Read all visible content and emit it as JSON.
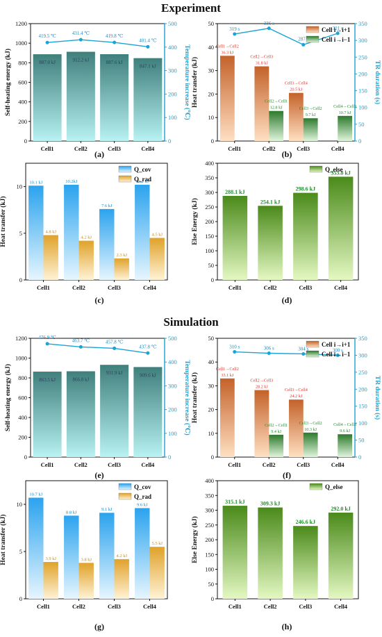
{
  "sections": {
    "experiment_title": "Experiment",
    "simulation_title": "Simulation"
  },
  "colors": {
    "axis": "#111111",
    "right_axis": "#1aa3d6",
    "teal_top": "#3f7f7c",
    "teal_bottom": "#b8f2f2",
    "orange_top": "#c4622a",
    "orange_bottom": "#ffe0c2",
    "green_top": "#2d7a2d",
    "green_bottom": "#e0f5dc",
    "blue_top": "#2ba3ee",
    "blue_bottom": "#e6f6ff",
    "gold_top": "#e0a22a",
    "gold_bottom": "#fff3d6",
    "lime_top": "#4a8a1a",
    "lime_bottom": "#e4f8c2",
    "label_red": "#e0302a",
    "label_green": "#1e8f2a",
    "label_blue": "#1a88c8",
    "label_gold": "#c78a1a"
  },
  "chart_data": [
    {
      "id": "a",
      "type": "bar+line",
      "panel_label": "(a)",
      "categories": [
        "Cell1",
        "Cell2",
        "Cell3",
        "Cell4"
      ],
      "ylabel": "Self-heating energy (kJ)",
      "ylim": [
        0,
        1200
      ],
      "yticks": [
        0,
        200,
        400,
        600,
        800,
        1000,
        1200
      ],
      "y2label": "Temperature increase (℃)",
      "y2lim": [
        0,
        500
      ],
      "y2ticks": [
        0,
        100,
        200,
        300,
        400,
        500
      ],
      "series": [
        {
          "values": [
            887.0,
            912.2,
            887.6,
            847.1
          ],
          "labels": [
            "887.0 kJ",
            "912.2 kJ",
            "887.6 kJ",
            "847.1 kJ"
          ]
        }
      ],
      "line": {
        "values": [
          419.5,
          431.4,
          419.8,
          401.4
        ],
        "labels": [
          "419.5 ℃",
          "431.4 ℃",
          "419.8 ℃",
          "401.4 ℃"
        ]
      }
    },
    {
      "id": "b",
      "type": "bar+line",
      "panel_label": "(b)",
      "categories": [
        "Cell1",
        "Cell2",
        "Cell3",
        "Cell4"
      ],
      "ylabel": "Heat transfer (kJ)",
      "ylim": [
        0,
        50
      ],
      "yticks": [
        0,
        10,
        20,
        30,
        40,
        50
      ],
      "y2label": "TR duration (s)",
      "y2lim": [
        0,
        350
      ],
      "y2ticks": [
        0,
        50,
        100,
        150,
        200,
        250,
        300,
        350
      ],
      "legend": [
        "Cell i→i+1",
        "Cell i→i−1"
      ],
      "series": [
        {
          "name": "Cell i→i+1",
          "values": [
            36.3,
            31.8,
            20.5,
            null
          ],
          "labels": [
            "Cell1→Cell2\n36.3 kJ",
            "Cell2→Cell3\n31.8 kJ",
            "Cell3→Cell4\n20.5 kJ",
            ""
          ]
        },
        {
          "name": "Cell i→i−1",
          "values": [
            null,
            12.8,
            9.7,
            10.7
          ],
          "labels": [
            "",
            "Cell2→Cell1\n12.8 kJ",
            "Cell3→Cell2\n9.7 kJ",
            "Cell4→Cell3\n10.7 kJ"
          ]
        }
      ],
      "line": {
        "values": [
          319,
          336,
          287,
          321
        ],
        "labels": [
          "319 s",
          "336 s",
          "287 s",
          "321 s"
        ]
      }
    },
    {
      "id": "c",
      "type": "bar",
      "panel_label": "(c)",
      "categories": [
        "Cell1",
        "Cell2",
        "Cell3",
        "Cell4"
      ],
      "ylabel": "Heat transfer (kJ)",
      "ylim": [
        0,
        12.5
      ],
      "yticks": [
        0,
        5,
        10
      ],
      "legend": [
        "Q_cov",
        "Q_rad"
      ],
      "series": [
        {
          "name": "Q_cov",
          "values": [
            10.1,
            10.2,
            7.6,
            10.2
          ],
          "labels": [
            "10.1 kJ",
            "10.2kJ",
            "7.6 kJ",
            "10.2 kJ"
          ]
        },
        {
          "name": "Q_rad",
          "values": [
            4.8,
            4.2,
            2.3,
            4.5
          ],
          "labels": [
            "4.8 kJ",
            "4.2 kJ",
            "2.3 kJ",
            "4.5 kJ"
          ]
        }
      ]
    },
    {
      "id": "d",
      "type": "bar",
      "panel_label": "(d)",
      "categories": [
        "Cell1",
        "Cell2",
        "Cell3",
        "Cell4"
      ],
      "ylabel": "Else Energy (kJ)",
      "ylim": [
        0,
        400
      ],
      "yticks": [
        0,
        50,
        100,
        150,
        200,
        250,
        300,
        350,
        400
      ],
      "legend": [
        "Q_else"
      ],
      "series": [
        {
          "name": "Q_else",
          "values": [
            288.1,
            254.1,
            298.6,
            353.8
          ],
          "labels": [
            "288.1 kJ",
            "254.1 kJ",
            "298.6 kJ",
            "353.8 kJ"
          ]
        }
      ]
    },
    {
      "id": "e",
      "type": "bar+line",
      "panel_label": "(e)",
      "categories": [
        "Cell1",
        "Cell2",
        "Cell3",
        "Cell4"
      ],
      "ylabel": "Self-heating energy (kJ)",
      "ylim": [
        0,
        1200
      ],
      "yticks": [
        0,
        200,
        400,
        600,
        800,
        1000,
        1200
      ],
      "y2label": "Temperature increase (℃)",
      "y2lim": [
        0,
        500
      ],
      "y2ticks": [
        0,
        100,
        200,
        300,
        400,
        500
      ],
      "series": [
        {
          "values": [
            863.5,
            866.8,
            931.9,
            909.6
          ],
          "labels": [
            "863.5 kJ",
            "866.8 kJ",
            "931.9 kJ",
            "909.6 kJ"
          ]
        }
      ],
      "line": {
        "values": [
          476.9,
          463.7,
          457.8,
          437.8
        ],
        "labels": [
          "476.9 ℃",
          "463.7 ℃",
          "457.8 ℃",
          "437.8 ℃"
        ]
      }
    },
    {
      "id": "f",
      "type": "bar+line",
      "panel_label": "(f)",
      "categories": [
        "Cell1",
        "Cell2",
        "Cell3",
        "Cell4"
      ],
      "ylabel": "Heat transfer (kJ)",
      "ylim": [
        0,
        50
      ],
      "yticks": [
        0,
        10,
        20,
        30,
        40,
        50
      ],
      "y2label": "TR duration (s)",
      "y2lim": [
        0,
        350
      ],
      "y2ticks": [
        0,
        50,
        100,
        150,
        200,
        250,
        300,
        350
      ],
      "legend": [
        "Cell i→i+1",
        "Cell i→i−1"
      ],
      "series": [
        {
          "name": "Cell i→i+1",
          "values": [
            33.1,
            28.2,
            24.2,
            null
          ],
          "labels": [
            "Cell1→Cell2\n33.1 kJ",
            "Cell2→Cell3\n28.2 kJ",
            "Cell3→Cell4\n24.2 kJ",
            ""
          ]
        },
        {
          "name": "Cell i→i−1",
          "values": [
            null,
            9.4,
            10.3,
            9.6
          ],
          "labels": [
            "",
            "Cell2→Cell1\n9.4 kJ",
            "Cell3→Cell2\n10.3 kJ",
            "Cell4→Cell3\n9.6 kJ"
          ]
        }
      ],
      "line": {
        "values": [
          310,
          306,
          304,
          300
        ],
        "labels": [
          "310 s",
          "306 s",
          "304 s",
          "300 s"
        ]
      }
    },
    {
      "id": "g",
      "type": "bar",
      "panel_label": "(g)",
      "categories": [
        "Cell1",
        "Cell2",
        "Cell3",
        "Cell4"
      ],
      "ylabel": "Heat transfer (kJ)",
      "ylim": [
        0,
        12.5
      ],
      "yticks": [
        0,
        5,
        10
      ],
      "legend": [
        "Q_cov",
        "Q_rad"
      ],
      "series": [
        {
          "name": "Q_cov",
          "values": [
            10.7,
            8.8,
            9.1,
            9.6
          ],
          "labels": [
            "10.7 kJ",
            "8.8 kJ",
            "9.1 kJ",
            "9.6 kJ"
          ]
        },
        {
          "name": "Q_rad",
          "values": [
            3.9,
            3.8,
            4.2,
            5.5
          ],
          "labels": [
            "3.9 kJ",
            "3.8 kJ",
            "4.2 kJ",
            "5.5 kJ"
          ]
        }
      ]
    },
    {
      "id": "h",
      "type": "bar",
      "panel_label": "(h)",
      "categories": [
        "Cell1",
        "Cell2",
        "Cell3",
        "Cell4"
      ],
      "ylabel": "Else Energy (kJ)",
      "ylim": [
        0,
        400
      ],
      "yticks": [
        0,
        50,
        100,
        150,
        200,
        250,
        300,
        350,
        400
      ],
      "legend": [
        "Q_else"
      ],
      "series": [
        {
          "name": "Q_else",
          "values": [
            315.1,
            309.3,
            246.6,
            292.0
          ],
          "labels": [
            "315.1 kJ",
            "309.3 kJ",
            "246.6 kJ",
            "292.0 kJ"
          ]
        }
      ]
    }
  ]
}
